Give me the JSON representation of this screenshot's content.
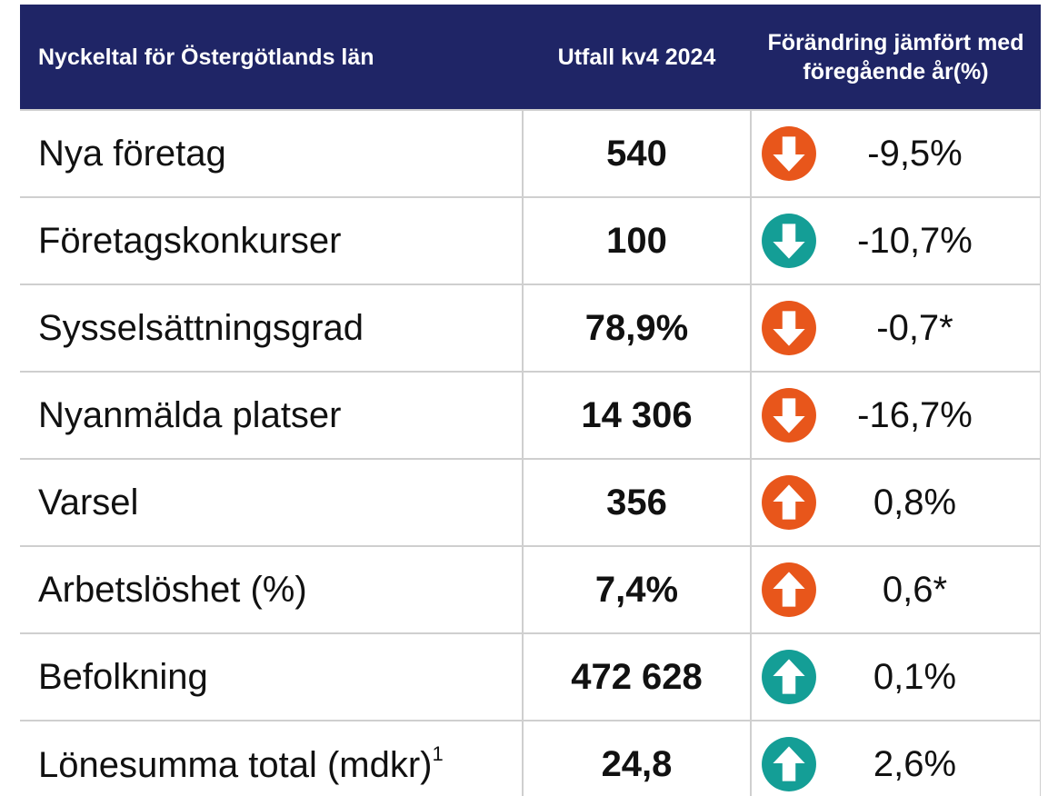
{
  "header": [
    "Nyckeltal för Östergötlands län",
    "Utfall kv4 2024",
    "Förändring jämfört med föregående år(%)"
  ],
  "rows": [
    {
      "label": "Nya företag",
      "value": "540",
      "change": "-9,5%"
    },
    {
      "label": "Företagskonkurser",
      "value": "100",
      "change": "-10,7%"
    },
    {
      "label": "Sysselsättningsgrad",
      "value": "78,9%",
      "change": "-0,7*"
    },
    {
      "label": "Nyanmälda platser",
      "value": "14 306",
      "change": "-16,7%"
    },
    {
      "label": "Varsel",
      "value": "356",
      "change": "0,8%"
    },
    {
      "label": "Arbetslöshet (%)",
      "value": "7,4%",
      "change": "0,6*"
    },
    {
      "label": "Befolkning",
      "value": "472 628",
      "change": "0,1%"
    },
    {
      "label": "Lönesumma total (mdkr)",
      "label_note": "1",
      "value": "24,8",
      "change": "2,6%"
    }
  ]
}
